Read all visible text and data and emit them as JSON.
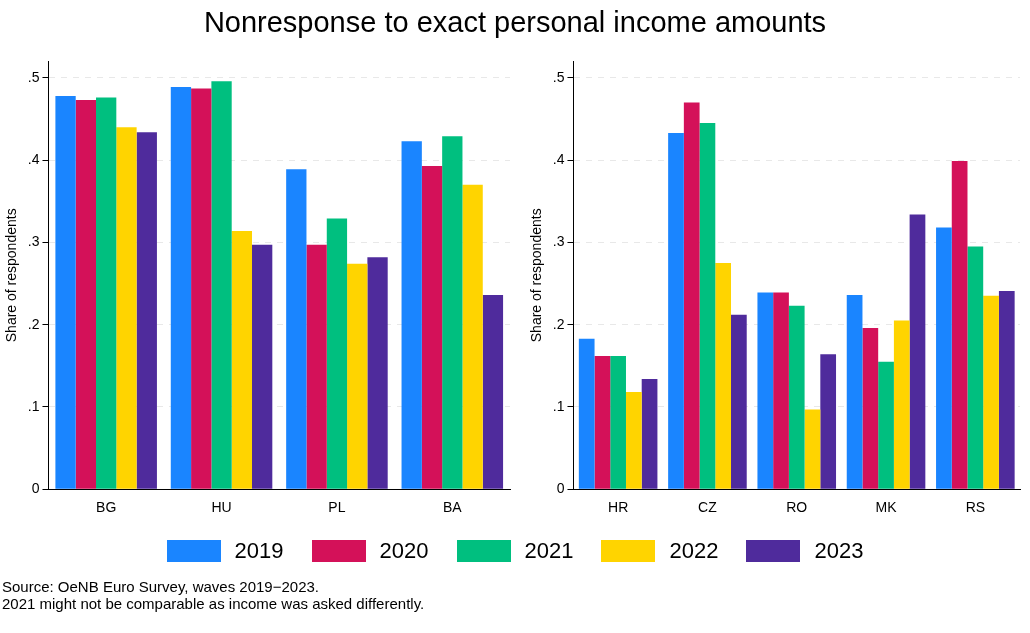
{
  "chart_data": [
    {
      "type": "bar",
      "title": "Nonresponse to exact personal income amounts",
      "ylabel": "Share of respondents",
      "categories": [
        "BG",
        "HU",
        "PL",
        "BA"
      ],
      "series": [
        {
          "name": "2019",
          "color": "#1a85ff",
          "values": [
            0.478,
            0.489,
            0.389,
            0.423
          ]
        },
        {
          "name": "2020",
          "color": "#d41159",
          "values": [
            0.473,
            0.487,
            0.297,
            0.393
          ]
        },
        {
          "name": "2021",
          "color": "#00bf7f",
          "values": [
            0.476,
            0.496,
            0.329,
            0.429
          ]
        },
        {
          "name": "2022",
          "color": "#ffd400",
          "values": [
            0.44,
            0.314,
            0.274,
            0.37
          ]
        },
        {
          "name": "2023",
          "color": "#4f2b9c",
          "values": [
            0.434,
            0.297,
            0.282,
            0.236
          ]
        }
      ],
      "ylim": [
        0,
        0.52
      ],
      "yticks": [
        0,
        {
          "value": 0.1,
          "label": ".1"
        },
        {
          "value": 0.2,
          "label": ".2"
        },
        {
          "value": 0.3,
          "label": ".3"
        },
        {
          "value": 0.4,
          "label": ".4"
        },
        {
          "value": 0.5,
          "label": ".5"
        }
      ],
      "grid": "y",
      "legend": "bottom",
      "annotations": [
        "Source: OeNB Euro Survey, waves 2019−2023.",
        "2021 might not be comparable as income was asked differently."
      ]
    },
    {
      "type": "bar",
      "ylabel": "Share of respondents",
      "categories": [
        "HR",
        "CZ",
        "RO",
        "MK",
        "RS"
      ],
      "series": [
        {
          "color": "#1a85ff",
          "values": [
            0.183,
            0.433,
            0.239,
            0.236,
            0.318
          ]
        },
        {
          "color": "#d41159",
          "values": [
            0.162,
            0.47,
            0.239,
            0.196,
            0.399
          ]
        },
        {
          "color": "#00bf7f",
          "values": [
            0.162,
            0.445,
            0.223,
            0.155,
            0.295
          ]
        },
        {
          "color": "#ffd400",
          "values": [
            0.118,
            0.275,
            0.097,
            0.205,
            0.235
          ]
        },
        {
          "color": "#4f2b9c",
          "values": [
            0.134,
            0.212,
            0.164,
            0.334,
            0.241
          ]
        }
      ],
      "ylim": [
        0,
        0.52
      ],
      "yticks": [
        0,
        {
          "value": 0.1,
          "label": ".1"
        },
        {
          "value": 0.2,
          "label": ".2"
        },
        {
          "value": 0.3,
          "label": ".3"
        },
        {
          "value": 0.4,
          "label": ".4"
        },
        {
          "value": 0.5,
          "label": ".5"
        }
      ],
      "grid": "y"
    }
  ]
}
